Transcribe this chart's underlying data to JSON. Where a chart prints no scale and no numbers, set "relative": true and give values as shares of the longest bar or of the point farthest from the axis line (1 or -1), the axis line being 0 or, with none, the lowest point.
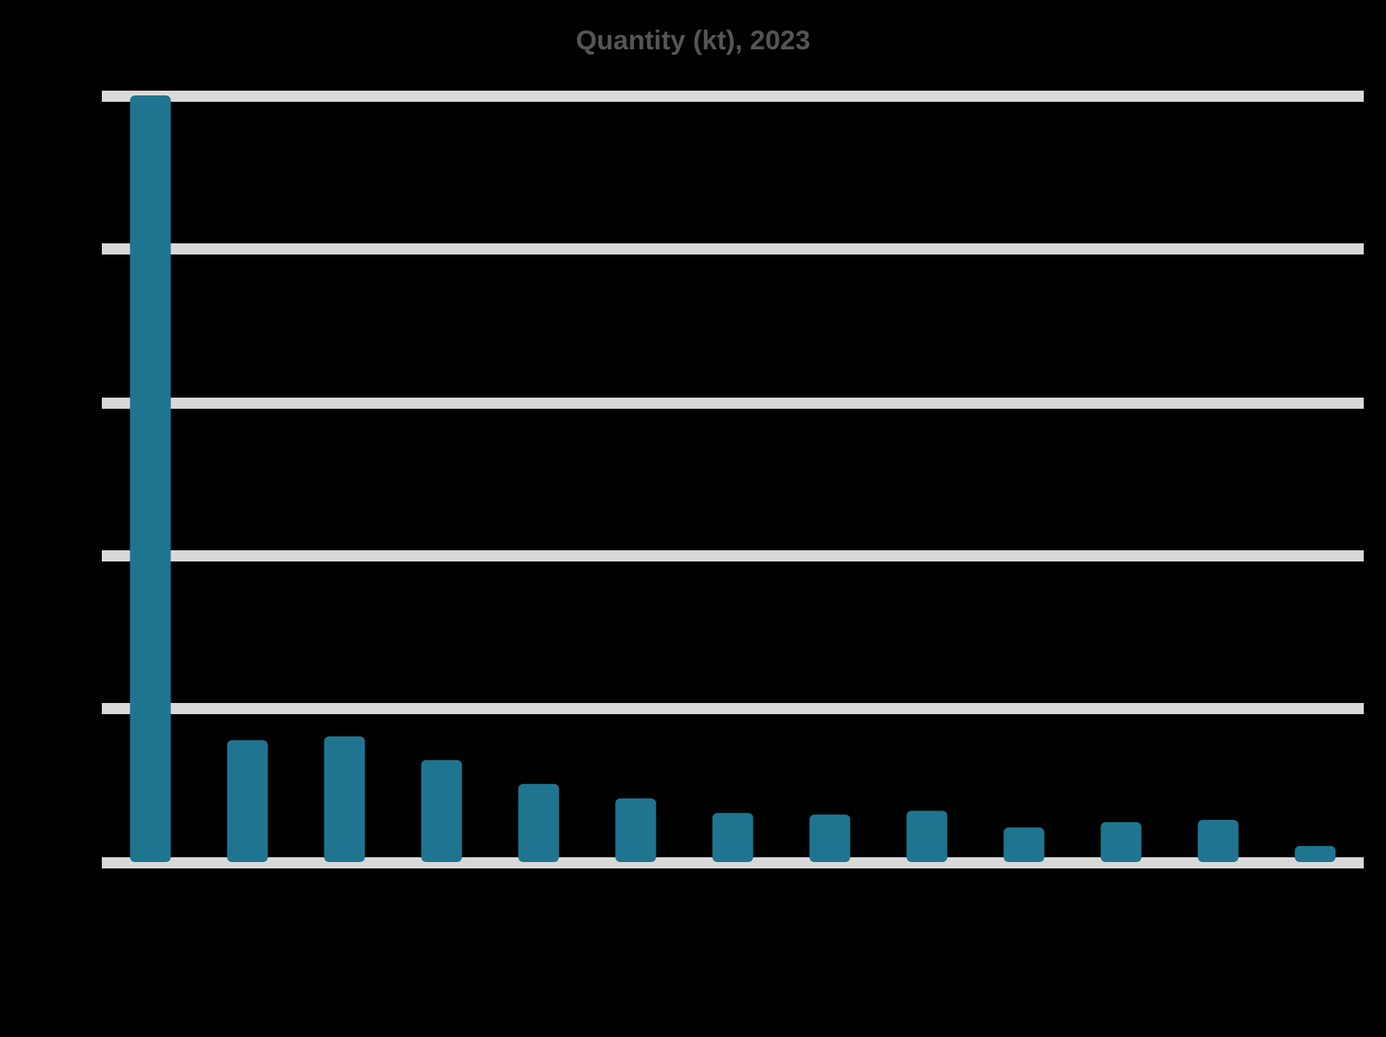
{
  "chart_data": {
    "type": "bar",
    "title": "Quantity (kt), 2023",
    "relative": true,
    "categories": [
      null,
      null,
      null,
      null,
      null,
      null,
      null,
      null,
      null,
      null,
      null,
      null,
      null
    ],
    "values": [
      1,
      0.159,
      0.164,
      0.133,
      0.102,
      0.083,
      0.064,
      0.062,
      0.067,
      0.045,
      0.052,
      0.055,
      0.021
    ],
    "color": "#1f758f",
    "grid": "y"
  }
}
